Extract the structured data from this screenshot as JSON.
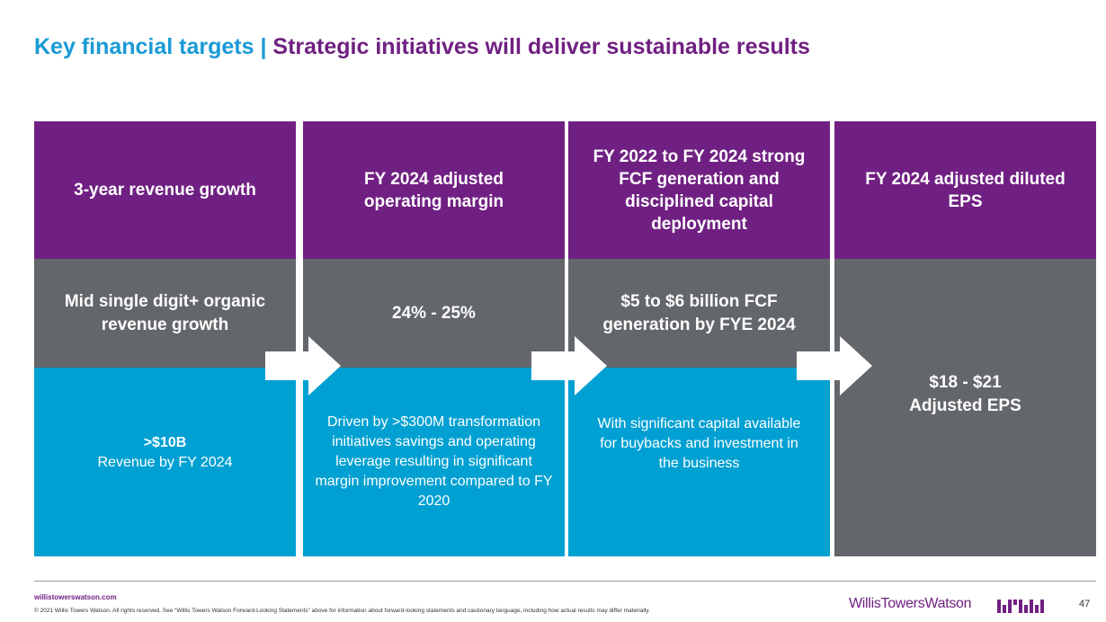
{
  "slide": {
    "title_part1": "Key financial targets",
    "title_separator": " | ",
    "title_part2": "Strategic initiatives will deliver sustainable results"
  },
  "columns": [
    {
      "header": "3-year revenue growth",
      "target": "Mid single digit+ organic revenue growth",
      "detail_strong": ">$10B",
      "detail": "Revenue by FY 2024"
    },
    {
      "header": "FY 2024 adjusted operating margin",
      "target": "24% - 25%",
      "detail": "Driven by >$300M transformation initiatives savings and operating leverage resulting in significant margin improvement compared to FY 2020"
    },
    {
      "header": "FY 2022 to FY 2024 strong FCF generation and disciplined capital deployment",
      "target": "$5 to $6 billion FCF generation by FYE 2024",
      "detail": "With significant capital available for buybacks and investment in the business"
    },
    {
      "header": "FY 2024 adjusted diluted EPS",
      "target_line1": "$18 - $21",
      "target_line2": "Adjusted EPS"
    }
  ],
  "footer": {
    "website": "willistowerswatson.com",
    "legal": "© 2021 Willis Towers Watson. All rights reserved. See “Willis Towers Watson Forward-Looking Statements” above for information about forward-looking statements and cautionary language, including how actual results may differ materially.",
    "brand": "WillisTowersWatson",
    "page_number": "47"
  },
  "colors": {
    "purple": "#702082",
    "gray": "#63666a",
    "blue": "#00a0d2",
    "title_blue": "#1a9ad6"
  },
  "icons": [
    "arrow-right-icon",
    "brand-mark-icon"
  ]
}
